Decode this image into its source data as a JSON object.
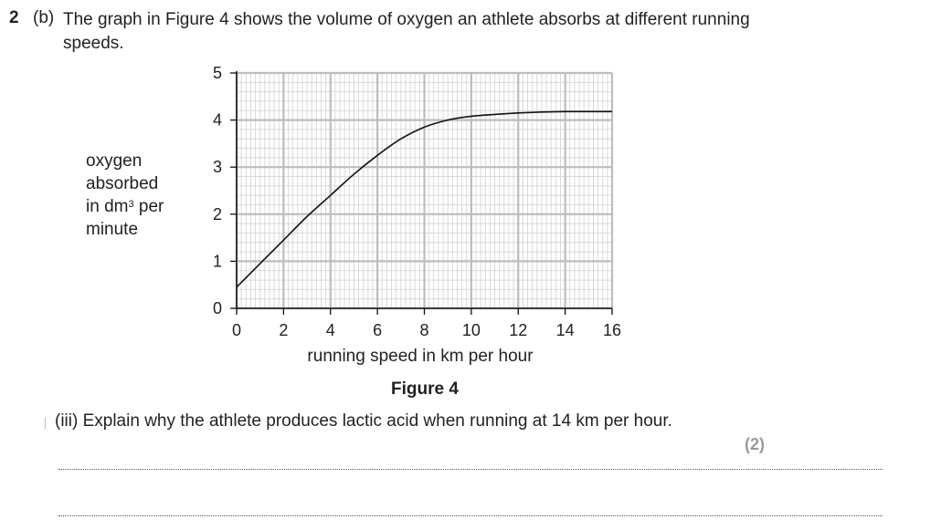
{
  "question": {
    "number": "2",
    "part": "(b)",
    "text": "The graph in Figure 4 shows the volume of oxygen an athlete absorbs at different running speeds."
  },
  "chart_data": {
    "type": "line",
    "title": "Figure 4",
    "xlabel": "running speed in km per hour",
    "ylabel_lines": [
      "oxygen",
      "absorbed",
      "in dm",
      "per",
      "minute"
    ],
    "ylabel_unit_superscript": "3",
    "xlim": [
      0,
      16
    ],
    "ylim": [
      0,
      5
    ],
    "x_ticks": [
      0,
      2,
      4,
      6,
      8,
      10,
      12,
      14,
      16
    ],
    "y_ticks": [
      0,
      1,
      2,
      3,
      4,
      5
    ],
    "grid": true,
    "series": [
      {
        "x": [
          0,
          1,
          2,
          3,
          4,
          5,
          6,
          7,
          8,
          9,
          10,
          11,
          12,
          13,
          14,
          15,
          16
        ],
        "y": [
          0.45,
          0.95,
          1.45,
          1.95,
          2.4,
          2.85,
          3.25,
          3.6,
          3.85,
          4.0,
          4.08,
          4.12,
          4.15,
          4.17,
          4.18,
          4.18,
          4.18
        ]
      }
    ]
  },
  "subquestion": {
    "text": "(iii) Explain why the athlete produces lactic acid when running at 14 km per hour.",
    "marks": "(2)"
  }
}
